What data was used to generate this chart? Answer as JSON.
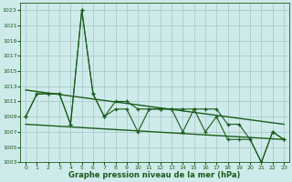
{
  "title": "Graphe pression niveau de la mer (hPa)",
  "background_color": "#ceeaea",
  "grid_color": "#aacccc",
  "line_color": "#1a5c1a",
  "ylim": [
    1003,
    1024
  ],
  "xlim": [
    -0.5,
    23.5
  ],
  "yticks": [
    1003,
    1005,
    1007,
    1009,
    1011,
    1013,
    1015,
    1017,
    1019,
    1021,
    1023
  ],
  "xticks": [
    0,
    1,
    2,
    3,
    4,
    5,
    6,
    7,
    8,
    9,
    10,
    11,
    12,
    13,
    14,
    15,
    16,
    17,
    18,
    19,
    20,
    21,
    22,
    23
  ],
  "series1": [
    1009,
    1012,
    1012,
    1012,
    1008,
    1023,
    1012,
    1009,
    1011,
    1011,
    1010,
    1010,
    1010,
    1010,
    1010,
    1010,
    1010,
    1010,
    1008,
    1008,
    1006,
    1003,
    1007,
    1006
  ],
  "series2": [
    1009,
    1012,
    1012,
    1012,
    1008,
    1023,
    1012,
    1009,
    1010,
    1010,
    1007,
    1010,
    1010,
    1010,
    1007,
    1010,
    1007,
    1009,
    1006,
    1006,
    1006,
    1003,
    1007,
    1006
  ],
  "trend1_x": [
    0,
    23
  ],
  "trend1_y": [
    1012.5,
    1008.0
  ],
  "trend2_x": [
    0,
    23
  ],
  "trend2_y": [
    1008.0,
    1006.0
  ]
}
